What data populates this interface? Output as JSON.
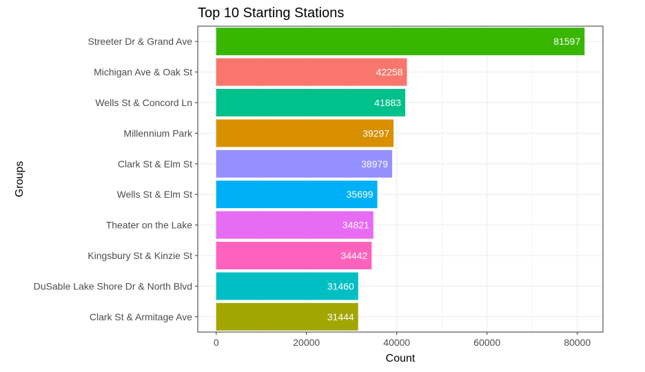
{
  "chart_data": {
    "type": "bar",
    "orientation": "horizontal",
    "title": "Top 10 Starting Stations",
    "xlabel": "Count",
    "ylabel": "Groups",
    "xlim": [
      -4080,
      85680
    ],
    "xticks": [
      0,
      20000,
      40000,
      60000,
      80000
    ],
    "grid": true,
    "categories": [
      "Streeter Dr & Grand Ave",
      "Michigan Ave & Oak St",
      "Wells St & Concord Ln",
      "Millennium Park",
      "Clark St & Elm St",
      "Wells St & Elm St",
      "Theater on the Lake",
      "Kingsbury St & Kinzie St",
      "DuSable Lake Shore Dr & North Blvd",
      "Clark St & Armitage Ave"
    ],
    "values": [
      81597,
      42258,
      41883,
      39297,
      38979,
      35699,
      34821,
      34442,
      31460,
      31444
    ],
    "colors": [
      "#39b600",
      "#f8766d",
      "#00c08b",
      "#d89000",
      "#9590ff",
      "#00b0f6",
      "#e76bf3",
      "#ff62bc",
      "#00bfc4",
      "#a3a500"
    ],
    "data_labels": [
      "81597",
      "42258",
      "41883",
      "39297",
      "38979",
      "35699",
      "34821",
      "34442",
      "31460",
      "31444"
    ],
    "legend": "none"
  }
}
